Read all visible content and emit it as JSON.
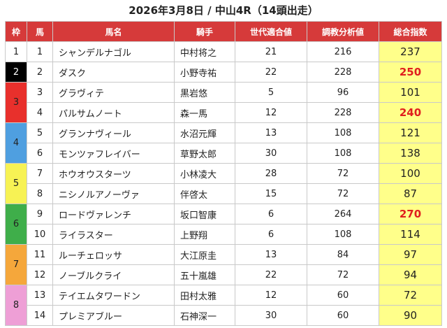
{
  "title": "2026年3月8日 / 中山4R（14頭出走）",
  "headers": [
    "枠",
    "馬",
    "馬名",
    "騎手",
    "世代適合値",
    "調教分析値",
    "総合指数"
  ],
  "colors": {
    "header": "#d63a3a",
    "score_bg": "#ffff8a",
    "score_highlight": "#e01e1e",
    "waku": {
      "1": "#ffffff",
      "2": "#000000",
      "3": "#e8302c",
      "4": "#4f9fe0",
      "5": "#f7f254",
      "6": "#3fae4a",
      "7": "#f5a73b",
      "8": "#ee9fd6"
    }
  },
  "waku_groups": [
    {
      "waku": "1",
      "rows": 1
    },
    {
      "waku": "2",
      "rows": 1
    },
    {
      "waku": "3",
      "rows": 2
    },
    {
      "waku": "4",
      "rows": 2
    },
    {
      "waku": "5",
      "rows": 2
    },
    {
      "waku": "6",
      "rows": 2
    },
    {
      "waku": "7",
      "rows": 2
    },
    {
      "waku": "8",
      "rows": 2
    }
  ],
  "rows": [
    {
      "uma": "1",
      "name": "シャンデルナゴル",
      "jockey": "中村将之",
      "generation": "21",
      "training": "216",
      "total": "237",
      "highlight": false
    },
    {
      "uma": "2",
      "name": "ダスク",
      "jockey": "小野寺祐",
      "generation": "22",
      "training": "228",
      "total": "250",
      "highlight": true
    },
    {
      "uma": "3",
      "name": "グラヴィテ",
      "jockey": "黒岩悠",
      "generation": "5",
      "training": "96",
      "total": "101",
      "highlight": false
    },
    {
      "uma": "4",
      "name": "パルサムノート",
      "jockey": "森一馬",
      "generation": "12",
      "training": "228",
      "total": "240",
      "highlight": true
    },
    {
      "uma": "5",
      "name": "グランナヴィール",
      "jockey": "水沼元輝",
      "generation": "13",
      "training": "108",
      "total": "121",
      "highlight": false
    },
    {
      "uma": "6",
      "name": "モンツァフレイバー",
      "jockey": "草野太郎",
      "generation": "30",
      "training": "108",
      "total": "138",
      "highlight": false
    },
    {
      "uma": "7",
      "name": "ホウオウスターツ",
      "jockey": "小林凌大",
      "generation": "28",
      "training": "72",
      "total": "100",
      "highlight": false
    },
    {
      "uma": "8",
      "name": "ニシノルアノーヴァ",
      "jockey": "伴啓太",
      "generation": "15",
      "training": "72",
      "total": "87",
      "highlight": false
    },
    {
      "uma": "9",
      "name": "ロードヴァレンチ",
      "jockey": "坂口智康",
      "generation": "6",
      "training": "264",
      "total": "270",
      "highlight": true
    },
    {
      "uma": "10",
      "name": "ライラスター",
      "jockey": "上野翔",
      "generation": "6",
      "training": "108",
      "total": "114",
      "highlight": false
    },
    {
      "uma": "11",
      "name": "ルーチェロッサ",
      "jockey": "大江原圭",
      "generation": "13",
      "training": "84",
      "total": "97",
      "highlight": false
    },
    {
      "uma": "12",
      "name": "ノーブルクライ",
      "jockey": "五十嵐雄",
      "generation": "22",
      "training": "72",
      "total": "94",
      "highlight": false
    },
    {
      "uma": "13",
      "name": "テイエムタワードン",
      "jockey": "田村太雅",
      "generation": "12",
      "training": "60",
      "total": "72",
      "highlight": false
    },
    {
      "uma": "14",
      "name": "プレミアブルー",
      "jockey": "石神深一",
      "generation": "30",
      "training": "60",
      "total": "90",
      "highlight": false
    }
  ]
}
